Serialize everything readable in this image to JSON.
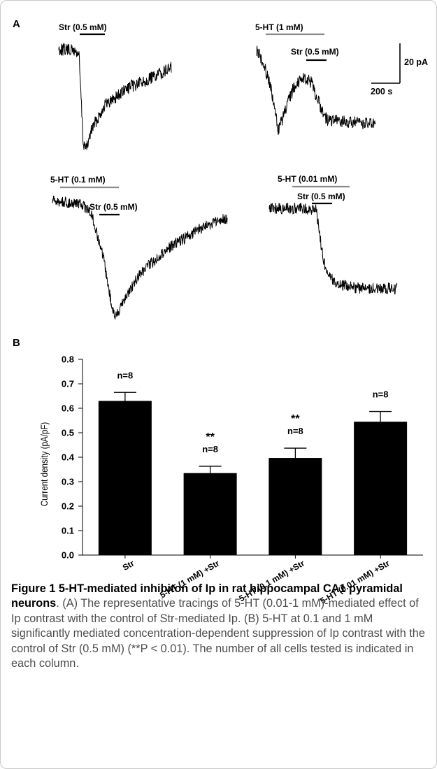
{
  "panel_a": {
    "letter": "A",
    "traces": [
      {
        "labels": [
          "Str (0.5 mM)"
        ]
      },
      {
        "labels": [
          "5-HT (1 mM)",
          "Str (0.5 mM)"
        ]
      },
      {
        "labels": [
          "5-HT (0.1 mM)",
          "Str (0.5 mM)"
        ]
      },
      {
        "labels": [
          "5-HT (0.01 mM)",
          "Str (0.5 mM)"
        ]
      }
    ],
    "scale_bar": {
      "amplitude_label": "20 pA",
      "time_label": "200 s"
    },
    "colors": {
      "trace": "#000000",
      "serotonin_bar": "#8c8c8c",
      "str_bar": "#000000"
    }
  },
  "panel_b": {
    "letter": "B",
    "chart_data": {
      "type": "bar",
      "categories": [
        "Str",
        "5-HT (1 mM) +Str",
        "5-HT (0.1 mM) +Str",
        "5-HT (0.01 mM) +Str"
      ],
      "values": [
        0.63,
        0.335,
        0.397,
        0.545
      ],
      "errors": [
        0.035,
        0.028,
        0.04,
        0.042
      ],
      "n_labels": [
        "n=8",
        "n=8",
        "n=8",
        "n=8"
      ],
      "significance": [
        "",
        "**",
        "**",
        ""
      ],
      "ylabel": "Current density (pA/pF)",
      "xlabel": "",
      "ylim": [
        0.0,
        0.8
      ],
      "yticks": [
        "0.0",
        "0.1",
        "0.2",
        "0.3",
        "0.4",
        "0.5",
        "0.6",
        "0.7",
        "0.8"
      ],
      "bar_color": "#000000"
    }
  },
  "caption": {
    "title": "Figure 1 5-HT-mediated inhibiton of Ip in rat hippocampal CA1 pyramidal neurons",
    "body": ". (A) The representative tracings of 5-HT (0.01-1 mM)-mediated effect of Ip contrast with the control of Str-mediated Ip. (B) 5-HT at 0.1 and 1 mM significantly mediated concentration-dependent suppression of Ip contrast with the control of Str (0.5 mM) (**P < 0.01). The number of all cells tested is indicated in each column."
  }
}
